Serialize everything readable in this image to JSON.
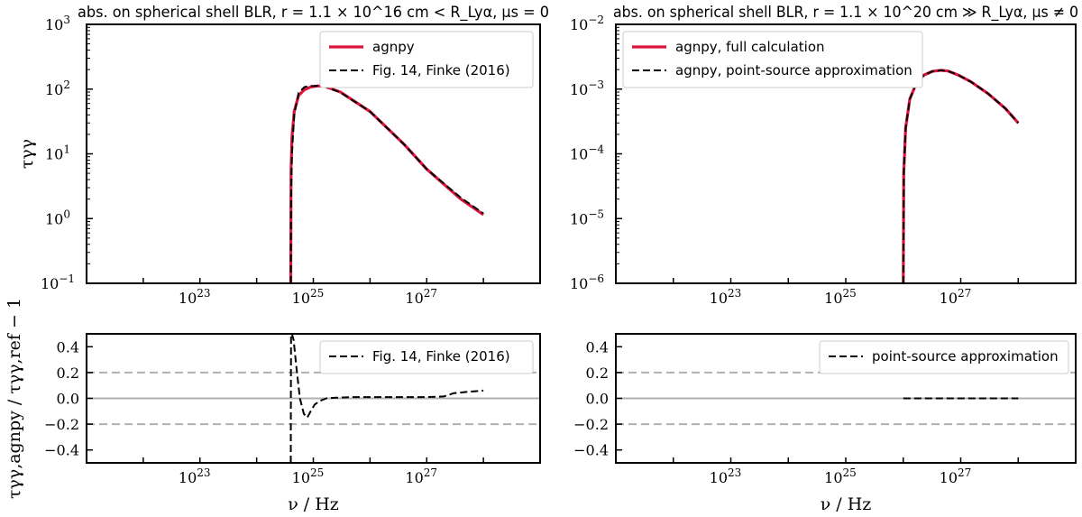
{
  "chart_data": [
    {
      "id": "top-left",
      "type": "line",
      "title": "abs. on spherical shell BLR, r = 1.1 × 10^16 cm < R_Lyα, μs = 0",
      "xlabel": "",
      "ylabel": "τγγ",
      "xscale": "log",
      "yscale": "log",
      "xlim": [
        1e+21,
        1e+29
      ],
      "ylim": [
        0.1,
        1000
      ],
      "xticks": [
        "10^23",
        "10^25",
        "10^27"
      ],
      "yticks": [
        "10^-1",
        "10^0",
        "10^1",
        "10^2",
        "10^3"
      ],
      "legend_position": "top-right",
      "series": [
        {
          "name": "agnpy",
          "color": "#dc143c",
          "style": "solid",
          "x": [
            4e+24,
            4.05e+24,
            4.2e+24,
            4.6e+24,
            5.5e+24,
            7e+24,
            9e+24,
            1.2e+25,
            1.6e+25,
            3e+25,
            1e+26,
            4e+26,
            1e+27,
            4e+27,
            1e+28
          ],
          "y": [
            0.1,
            5.5,
            18,
            45,
            80,
            98,
            108,
            112,
            110,
            90,
            45,
            14,
            5.8,
            2.0,
            1.15
          ]
        },
        {
          "name": "Fig. 14, Finke (2016)",
          "color": "#000000",
          "style": "dashed",
          "x": [
            4e+24,
            4.05e+24,
            4.2e+24,
            4.6e+24,
            5.5e+24,
            7e+24,
            9e+24,
            1.2e+25,
            1.6e+25,
            3e+25,
            1e+26,
            4e+26,
            1e+27,
            4e+27,
            1e+28
          ],
          "y": [
            0.1,
            2.0,
            10,
            40,
            88,
            108,
            112,
            112,
            109,
            89,
            45,
            14,
            5.8,
            2.1,
            1.2
          ]
        }
      ]
    },
    {
      "id": "top-right",
      "type": "line",
      "title": "abs. on spherical shell BLR, r = 1.1 × 10^20 cm ≫ R_Lyα, μs ≠ 0",
      "xlabel": "",
      "ylabel": "",
      "xscale": "log",
      "yscale": "log",
      "xlim": [
        1e+21,
        1e+29
      ],
      "ylim": [
        1e-06,
        0.01
      ],
      "xticks": [
        "10^23",
        "10^25",
        "10^27"
      ],
      "yticks": [
        "10^-6",
        "10^-5",
        "10^-4",
        "10^-3",
        "10^-2"
      ],
      "legend_position": "top-left",
      "series": [
        {
          "name": "agnpy, full calculation",
          "color": "#dc143c",
          "style": "solid",
          "x": [
            1e+26,
            1.02e+26,
            1.1e+26,
            1.3e+26,
            1.7e+26,
            2.3e+26,
            3.2e+26,
            4.5e+26,
            6e+26,
            9e+26,
            1.5e+27,
            3e+27,
            6e+27,
            1e+28
          ],
          "y": [
            1e-06,
            5e-05,
            0.00025,
            0.0007,
            0.00125,
            0.00165,
            0.00188,
            0.00195,
            0.0019,
            0.00165,
            0.0013,
            0.00085,
            0.0005,
            0.0003
          ]
        },
        {
          "name": "agnpy, point-source approximation",
          "color": "#000000",
          "style": "dashed",
          "x": [
            1e+26,
            1.02e+26,
            1.1e+26,
            1.3e+26,
            1.7e+26,
            2.3e+26,
            3.2e+26,
            4.5e+26,
            6e+26,
            9e+26,
            1.5e+27,
            3e+27,
            6e+27,
            1e+28
          ],
          "y": [
            1e-06,
            5e-05,
            0.00025,
            0.0007,
            0.00125,
            0.00165,
            0.00188,
            0.00195,
            0.0019,
            0.00165,
            0.0013,
            0.00085,
            0.0005,
            0.0003
          ]
        }
      ]
    },
    {
      "id": "bottom-left",
      "type": "line",
      "title": "",
      "xlabel": "ν / Hz",
      "ylabel": "τγγ,agnpy / τγγ,ref − 1",
      "xscale": "log",
      "yscale": "linear",
      "xlim": [
        1e+21,
        1e+29
      ],
      "ylim": [
        -0.5,
        0.5
      ],
      "xticks": [
        "10^23",
        "10^25",
        "10^27"
      ],
      "yticks": [
        "0.4",
        "0.2",
        "0.0",
        "−0.2",
        "−0.4"
      ],
      "ytick_values": [
        0.4,
        0.2,
        0.0,
        -0.2,
        -0.4
      ],
      "reference_lines": {
        "solid": [
          0.0
        ],
        "dashed": [
          0.2,
          -0.2
        ]
      },
      "legend_position": "top-right",
      "series": [
        {
          "name": "Fig. 14, Finke (2016)",
          "color": "#000000",
          "style": "dashed",
          "x": [
            4e+24,
            4.02e+24,
            4.05e+24,
            4.2e+24,
            4.5e+24,
            5e+24,
            5.8e+24,
            6.8e+24,
            7.8e+24,
            9e+24,
            1.05e+25,
            1.3e+25,
            1.7e+25,
            2.5e+25,
            5e+25,
            1e+26,
            3e+26,
            1e+27,
            2e+27,
            3e+27,
            5e+27,
            1e+28
          ],
          "y": [
            -0.5,
            0.0,
            0.5,
            0.5,
            0.45,
            0.25,
            0.0,
            -0.12,
            -0.15,
            -0.1,
            -0.05,
            -0.02,
            0.0,
            0.005,
            0.01,
            0.01,
            0.01,
            0.01,
            0.015,
            0.04,
            0.05,
            0.06
          ]
        }
      ]
    },
    {
      "id": "bottom-right",
      "type": "line",
      "title": "",
      "xlabel": "ν / Hz",
      "ylabel": "",
      "xscale": "log",
      "yscale": "linear",
      "xlim": [
        1e+21,
        1e+29
      ],
      "ylim": [
        -0.5,
        0.5
      ],
      "xticks": [
        "10^23",
        "10^25",
        "10^27"
      ],
      "yticks": [
        "0.4",
        "0.2",
        "0.0",
        "−0.2",
        "−0.4"
      ],
      "ytick_values": [
        0.4,
        0.2,
        0.0,
        -0.2,
        -0.4
      ],
      "reference_lines": {
        "solid": [
          0.0
        ],
        "dashed": [
          0.2,
          -0.2
        ]
      },
      "legend_position": "top-right",
      "series": [
        {
          "name": "point-source approximation",
          "color": "#000000",
          "style": "dashed",
          "x": [
            1e+26,
            3e+26,
            1e+27,
            3e+27,
            1e+28
          ],
          "y": [
            0.0,
            0.0,
            0.0,
            0.0,
            0.0
          ]
        }
      ]
    }
  ]
}
